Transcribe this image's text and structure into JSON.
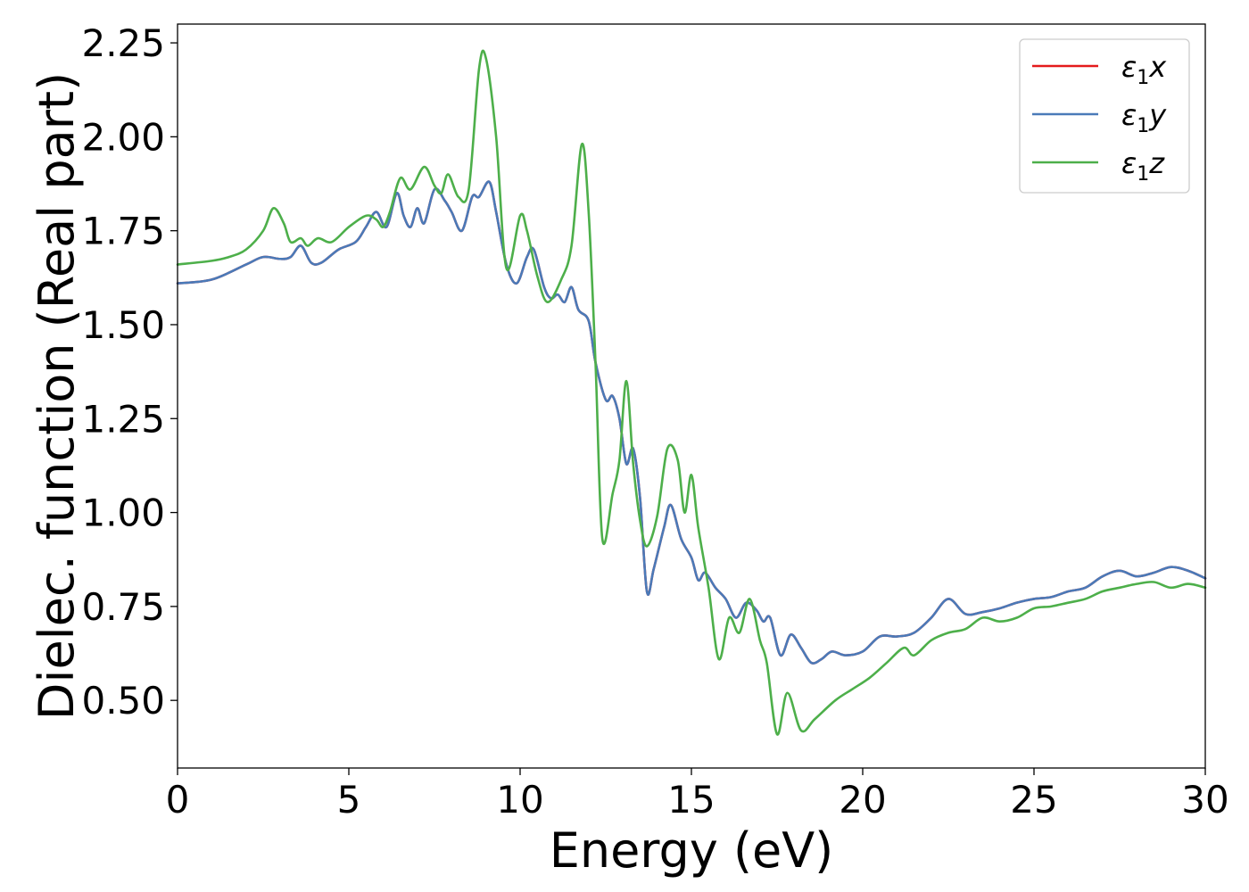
{
  "chart_data": {
    "type": "line",
    "title": "",
    "xlabel": "Energy (eV)",
    "ylabel": "Dielec. function (Real part)",
    "xlim": [
      0,
      30
    ],
    "ylim": [
      0.32,
      2.3
    ],
    "xticks": [
      0,
      5,
      10,
      15,
      20,
      25,
      30
    ],
    "xtick_labels": [
      "0",
      "5",
      "10",
      "15",
      "20",
      "25",
      "30"
    ],
    "yticks": [
      0.5,
      0.75,
      1.0,
      1.25,
      1.5,
      1.75,
      2.0,
      2.25
    ],
    "ytick_labels": [
      "0.50",
      "0.75",
      "1.00",
      "1.25",
      "1.50",
      "1.75",
      "2.00",
      "2.25"
    ],
    "grid": false,
    "legend_position": "top-right",
    "series": [
      {
        "name": "ε1x",
        "name_base": "ε",
        "name_sub": "1",
        "name_var": "x",
        "color": "#e41a1c",
        "same_as": "ε1y",
        "points": []
      },
      {
        "name": "ε1y",
        "name_base": "ε",
        "name_sub": "1",
        "name_var": "y",
        "color": "#4a7ab8",
        "points": [
          [
            0,
            1.61
          ],
          [
            1,
            1.62
          ],
          [
            2,
            1.66
          ],
          [
            2.5,
            1.68
          ],
          [
            3,
            1.675
          ],
          [
            3.3,
            1.68
          ],
          [
            3.6,
            1.71
          ],
          [
            3.9,
            1.665
          ],
          [
            4.2,
            1.665
          ],
          [
            4.7,
            1.7
          ],
          [
            5.2,
            1.72
          ],
          [
            5.5,
            1.76
          ],
          [
            5.8,
            1.8
          ],
          [
            6.1,
            1.76
          ],
          [
            6.4,
            1.85
          ],
          [
            6.6,
            1.79
          ],
          [
            6.8,
            1.76
          ],
          [
            7,
            1.81
          ],
          [
            7.2,
            1.77
          ],
          [
            7.5,
            1.86
          ],
          [
            7.8,
            1.83
          ],
          [
            8,
            1.8
          ],
          [
            8.3,
            1.75
          ],
          [
            8.6,
            1.84
          ],
          [
            8.8,
            1.84
          ],
          [
            9.1,
            1.88
          ],
          [
            9.3,
            1.8
          ],
          [
            9.6,
            1.66
          ],
          [
            9.9,
            1.61
          ],
          [
            10.2,
            1.68
          ],
          [
            10.4,
            1.7
          ],
          [
            10.7,
            1.6
          ],
          [
            10.9,
            1.57
          ],
          [
            11.1,
            1.58
          ],
          [
            11.3,
            1.56
          ],
          [
            11.5,
            1.6
          ],
          [
            11.7,
            1.54
          ],
          [
            12,
            1.51
          ],
          [
            12.2,
            1.4
          ],
          [
            12.5,
            1.3
          ],
          [
            12.7,
            1.31
          ],
          [
            12.9,
            1.25
          ],
          [
            13.1,
            1.13
          ],
          [
            13.3,
            1.17
          ],
          [
            13.5,
            1.04
          ],
          [
            13.7,
            0.79
          ],
          [
            13.9,
            0.85
          ],
          [
            14.2,
            0.96
          ],
          [
            14.4,
            1.02
          ],
          [
            14.7,
            0.93
          ],
          [
            15,
            0.88
          ],
          [
            15.2,
            0.82
          ],
          [
            15.4,
            0.84
          ],
          [
            15.7,
            0.8
          ],
          [
            16,
            0.77
          ],
          [
            16.3,
            0.72
          ],
          [
            16.6,
            0.76
          ],
          [
            16.9,
            0.74
          ],
          [
            17.1,
            0.71
          ],
          [
            17.3,
            0.72
          ],
          [
            17.6,
            0.62
          ],
          [
            17.9,
            0.675
          ],
          [
            18.2,
            0.64
          ],
          [
            18.5,
            0.6
          ],
          [
            18.8,
            0.61
          ],
          [
            19.1,
            0.63
          ],
          [
            19.5,
            0.62
          ],
          [
            20,
            0.63
          ],
          [
            20.5,
            0.67
          ],
          [
            21,
            0.67
          ],
          [
            21.5,
            0.68
          ],
          [
            22,
            0.72
          ],
          [
            22.5,
            0.77
          ],
          [
            23,
            0.73
          ],
          [
            23.5,
            0.735
          ],
          [
            24,
            0.745
          ],
          [
            24.5,
            0.76
          ],
          [
            25,
            0.77
          ],
          [
            25.5,
            0.775
          ],
          [
            26,
            0.79
          ],
          [
            26.5,
            0.8
          ],
          [
            27,
            0.83
          ],
          [
            27.5,
            0.845
          ],
          [
            28,
            0.83
          ],
          [
            28.5,
            0.84
          ],
          [
            29,
            0.855
          ],
          [
            29.5,
            0.845
          ],
          [
            30,
            0.825
          ]
        ]
      },
      {
        "name": "ε1z",
        "name_base": "ε",
        "name_sub": "1",
        "name_var": "z",
        "color": "#4daf4a",
        "points": [
          [
            0,
            1.66
          ],
          [
            1,
            1.67
          ],
          [
            1.5,
            1.68
          ],
          [
            2,
            1.7
          ],
          [
            2.5,
            1.75
          ],
          [
            2.8,
            1.81
          ],
          [
            3.1,
            1.77
          ],
          [
            3.3,
            1.72
          ],
          [
            3.6,
            1.73
          ],
          [
            3.8,
            1.71
          ],
          [
            4.1,
            1.73
          ],
          [
            4.5,
            1.72
          ],
          [
            5,
            1.76
          ],
          [
            5.5,
            1.79
          ],
          [
            5.8,
            1.78
          ],
          [
            6,
            1.76
          ],
          [
            6.2,
            1.8
          ],
          [
            6.5,
            1.89
          ],
          [
            6.8,
            1.86
          ],
          [
            7.2,
            1.92
          ],
          [
            7.5,
            1.87
          ],
          [
            7.7,
            1.85
          ],
          [
            7.9,
            1.9
          ],
          [
            8.2,
            1.84
          ],
          [
            8.5,
            1.86
          ],
          [
            8.8,
            2.18
          ],
          [
            9,
            2.21
          ],
          [
            9.3,
            2.0
          ],
          [
            9.6,
            1.65
          ],
          [
            10,
            1.79
          ],
          [
            10.2,
            1.75
          ],
          [
            10.5,
            1.63
          ],
          [
            10.8,
            1.56
          ],
          [
            11.2,
            1.62
          ],
          [
            11.5,
            1.71
          ],
          [
            11.8,
            1.98
          ],
          [
            12,
            1.8
          ],
          [
            12.2,
            1.4
          ],
          [
            12.4,
            0.93
          ],
          [
            12.7,
            1.05
          ],
          [
            12.9,
            1.14
          ],
          [
            13.1,
            1.35
          ],
          [
            13.3,
            1.13
          ],
          [
            13.5,
            0.98
          ],
          [
            13.7,
            0.91
          ],
          [
            14,
            0.99
          ],
          [
            14.3,
            1.17
          ],
          [
            14.6,
            1.14
          ],
          [
            14.8,
            1.0
          ],
          [
            15,
            1.1
          ],
          [
            15.2,
            0.96
          ],
          [
            15.5,
            0.8
          ],
          [
            15.8,
            0.61
          ],
          [
            16.1,
            0.72
          ],
          [
            16.4,
            0.68
          ],
          [
            16.7,
            0.77
          ],
          [
            17,
            0.66
          ],
          [
            17.2,
            0.6
          ],
          [
            17.5,
            0.41
          ],
          [
            17.8,
            0.52
          ],
          [
            18.2,
            0.42
          ],
          [
            18.6,
            0.45
          ],
          [
            19.2,
            0.5
          ],
          [
            19.7,
            0.53
          ],
          [
            20.2,
            0.56
          ],
          [
            20.7,
            0.6
          ],
          [
            21.2,
            0.64
          ],
          [
            21.5,
            0.62
          ],
          [
            22,
            0.66
          ],
          [
            22.5,
            0.68
          ],
          [
            23,
            0.69
          ],
          [
            23.5,
            0.72
          ],
          [
            24,
            0.71
          ],
          [
            24.5,
            0.72
          ],
          [
            25,
            0.745
          ],
          [
            25.5,
            0.75
          ],
          [
            26,
            0.76
          ],
          [
            26.5,
            0.77
          ],
          [
            27,
            0.79
          ],
          [
            27.5,
            0.8
          ],
          [
            28,
            0.81
          ],
          [
            28.5,
            0.815
          ],
          [
            29,
            0.8
          ],
          [
            29.5,
            0.81
          ],
          [
            30,
            0.8
          ]
        ]
      }
    ]
  }
}
